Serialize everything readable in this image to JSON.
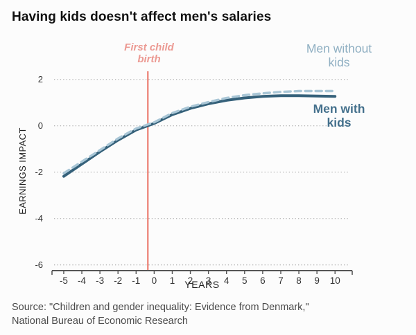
{
  "header": {
    "title": "Having kids doesn't affect men's salaries"
  },
  "footer": {
    "source": "Source: \"Children and gender inequality: Evidence from Denmark,\"\nNational Bureau of Economic Research"
  },
  "legend": {
    "without_kids": "Men without\nkids",
    "with_kids": "Men with\nkids"
  },
  "annotations": {
    "event_label": "First child\nbirth"
  },
  "colors": {
    "title_text": "#111111",
    "with_kids_line": "#35617a",
    "without_kids_line": "#a9c6d6",
    "with_kids_label": "#44708c",
    "without_kids_label": "#8fafc2",
    "event_line": "#ee8b80",
    "event_label": "#ec9a93",
    "grid": "#b9b9b9",
    "axis": "#555555",
    "tick_text": "#333333",
    "axis_title_text": "#222222",
    "source_text": "#4a4a4a"
  },
  "chart_data": {
    "type": "line",
    "title": "Having kids doesn't affect men's salaries",
    "xlabel": "YEARS",
    "ylabel": "EARNINGS IMPACT",
    "grid": "horizontal-dotted",
    "legend_position": "right-inline",
    "xlim": [
      -5.65,
      10.95
    ],
    "ylim": [
      -6.25,
      2.35
    ],
    "xticks": [
      -5,
      -4,
      -3,
      -2,
      -1,
      0,
      1,
      2,
      3,
      4,
      5,
      6,
      7,
      8,
      9,
      10
    ],
    "yticks": [
      2,
      0,
      -2,
      -4,
      -6
    ],
    "event_line": {
      "x": -0.35,
      "label": "First child birth"
    },
    "x": [
      -5,
      -4,
      -3,
      -2,
      -1,
      0,
      1,
      2,
      3,
      4,
      5,
      6,
      7,
      8,
      9,
      10
    ],
    "series": [
      {
        "name": "Men without kids",
        "style": "dashed",
        "color": "#a9c6d6",
        "values": [
          -2.05,
          -1.55,
          -1.05,
          -0.55,
          -0.12,
          0.15,
          0.55,
          0.82,
          1.02,
          1.2,
          1.32,
          1.4,
          1.46,
          1.5,
          1.5,
          1.5
        ]
      },
      {
        "name": "Men with kids",
        "style": "solid",
        "color": "#35617a",
        "values": [
          -2.18,
          -1.65,
          -1.12,
          -0.62,
          -0.18,
          0.1,
          0.48,
          0.75,
          0.95,
          1.1,
          1.2,
          1.27,
          1.3,
          1.3,
          1.28,
          1.27
        ]
      }
    ]
  }
}
